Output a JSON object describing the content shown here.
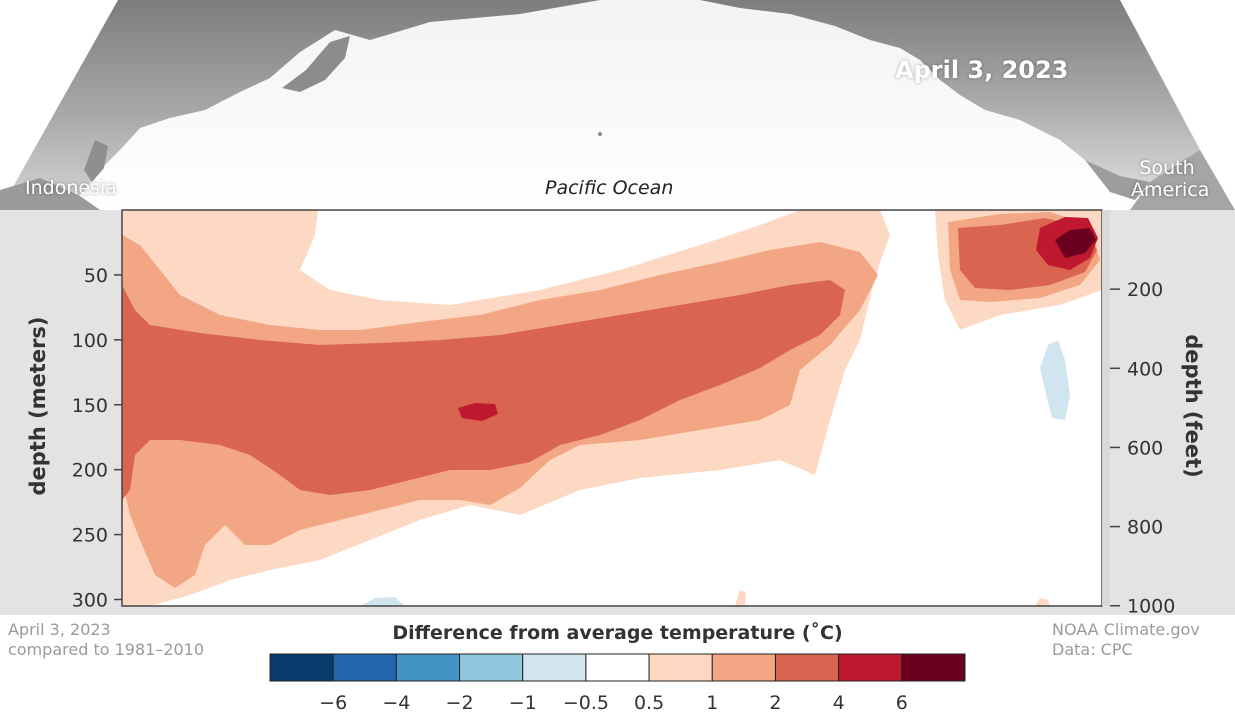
{
  "header": {
    "date": "April 3, 2023",
    "label_left": "Indonesia",
    "label_center": "Pacific Ocean",
    "label_right_line1": "South",
    "label_right_line2": "America"
  },
  "footer": {
    "left_line1": "April 3, 2023",
    "left_line2": "compared to 1981–2010",
    "right_line1": "NOAA Climate.gov",
    "right_line2": "Data: CPC"
  },
  "colors": {
    "frame_bg": "#e3e3e3",
    "plot_bg": "#ffffff",
    "axis_text": "#333333",
    "anomaly_0_5_1": "#fdd9c4",
    "anomaly_1_2": "#f2a684",
    "anomaly_2_4": "#d96450",
    "anomaly_4_6": "#c0182e",
    "anomaly_6_plus": "#6b0020",
    "anomaly_neg_0_5_1": "#d1e5f0"
  },
  "chart_data": {
    "type": "heatmap",
    "title": "",
    "xlabel": "Pacific Ocean",
    "ylabel": "depth (meters)",
    "y2label": "depth (feet)",
    "ylim": [
      0,
      305
    ],
    "y_ticks": [
      "50",
      "100",
      "150",
      "200",
      "250",
      "300"
    ],
    "y_tick_values": [
      50,
      100,
      150,
      200,
      250,
      300
    ],
    "y2_ticks": [
      "200",
      "400",
      "600",
      "800",
      "1000"
    ],
    "y2_tick_values": [
      200,
      400,
      600,
      800,
      1000
    ],
    "x_extent": [
      "Indonesia",
      "South America"
    ],
    "legend": {
      "title": "Difference from average temperature (˚C)",
      "placement": "bottom-center",
      "colors": [
        "#0a3a6b",
        "#2166ac",
        "#4393c3",
        "#92c5de",
        "#d1e5f0",
        "#ffffff",
        "#fdd9c4",
        "#f2a684",
        "#d96450",
        "#c0182e",
        "#6b0020"
      ],
      "tick_labels": [
        "−6",
        "−4",
        "−2",
        "−1",
        "−0.5",
        "0.5",
        "1",
        "2",
        "4",
        "6"
      ]
    },
    "date": "April 3, 2023",
    "baseline": "1981–2010"
  }
}
